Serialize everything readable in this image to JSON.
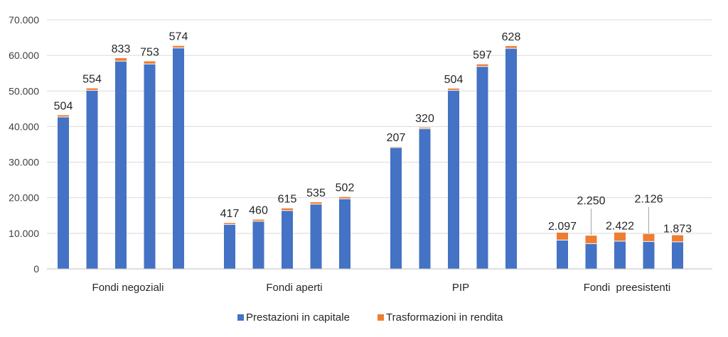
{
  "chart_data": {
    "type": "bar",
    "stacked": true,
    "groups": [
      "Fondi negoziali",
      "Fondi aperti",
      "PIP",
      "Fondi  preesistenti"
    ],
    "bars_per_group": 5,
    "ylim": [
      0,
      70000
    ],
    "yticks": [
      0,
      10000,
      20000,
      30000,
      40000,
      50000,
      60000,
      70000
    ],
    "ytick_labels": [
      "0",
      "10.000",
      "20.000",
      "30.000",
      "40.000",
      "50.000",
      "60.000",
      "70.000"
    ],
    "grid": true,
    "legend_position": "bottom",
    "series": [
      {
        "name": "Prestazioni in capitale",
        "color": "#4472C4",
        "values": [
          42700,
          50200,
          58400,
          57600,
          62100,
          12500,
          13400,
          16400,
          18200,
          19700,
          34100,
          39400,
          50200,
          56900,
          62000,
          8100,
          7100,
          7800,
          7700,
          7600
        ]
      },
      {
        "name": "Trasformazioni in rendita",
        "color": "#ED7D31",
        "values": [
          504,
          554,
          833,
          753,
          574,
          417,
          460,
          615,
          535,
          502,
          207,
          320,
          504,
          597,
          628,
          2097,
          2250,
          2422,
          2126,
          1873
        ]
      }
    ],
    "data_labels": [
      "504",
      "554",
      "833",
      "753",
      "574",
      "417",
      "460",
      "615",
      "535",
      "502",
      "207",
      "320",
      "504",
      "597",
      "628",
      "2.097",
      "2.250",
      "2.422",
      "2.126",
      "1.873"
    ]
  }
}
